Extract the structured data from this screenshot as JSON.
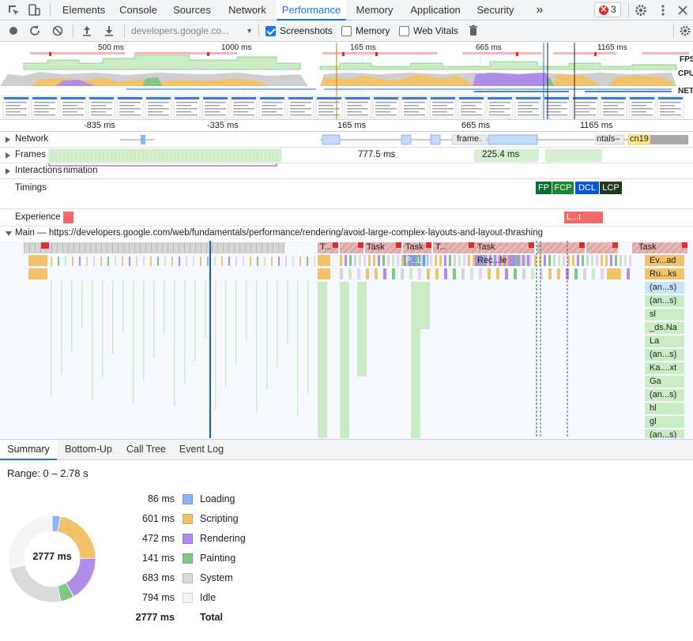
{
  "tabs": {
    "items": [
      {
        "label": "Elements"
      },
      {
        "label": "Console"
      },
      {
        "label": "Sources"
      },
      {
        "label": "Network"
      },
      {
        "label": "Performance"
      },
      {
        "label": "Memory"
      },
      {
        "label": "Application"
      },
      {
        "label": "Security"
      }
    ],
    "active": "Performance",
    "more_label": "»",
    "error_count": "3",
    "error_glyph": "✕"
  },
  "toolbar": {
    "url": "developers.google.co...",
    "screenshots_label": "Screenshots",
    "memory_label": "Memory",
    "webvitals_label": "Web Vitals",
    "screenshots_checked": true,
    "memory_checked": false,
    "webvitals_checked": false
  },
  "overview": {
    "tick_labels": [
      "500 ms",
      "1000 ms",
      "165 ms",
      "665 ms",
      "1165 ms"
    ],
    "fps_label": "FPS",
    "cpu_label": "CPU",
    "net_label": "NET"
  },
  "ruler": {
    "tick_labels": [
      "-835 ms",
      "-335 ms",
      "165 ms",
      "665 ms",
      "1165 ms"
    ]
  },
  "tracks": {
    "network": "Network",
    "frames": "Frames",
    "interactions": "Interactions",
    "interactions_suffix": "nimation",
    "timings": "Timings",
    "experience": "Experience",
    "main": "Main — https://developers.google.com/web/fundamentals/performance/rendering/avoid-large-complex-layouts-and-layout-thrashing"
  },
  "network_items": [
    "frame.",
    "ntals–",
    "cn19"
  ],
  "frames": {
    "duration_1": "777.5 ms",
    "duration_2": "225.4 ms"
  },
  "timings": {
    "fp": "FP",
    "fcp": "FCP",
    "dcl": "DCL",
    "lcp": "LCP"
  },
  "experience_item": "L...t",
  "flame": {
    "task_labels": [
      "T...",
      "Task",
      "Task",
      "T...",
      "Task",
      "Task"
    ],
    "sub_labels": [
      "P...L",
      "Rec...le"
    ],
    "right_stack": [
      "Ev...ad",
      "Ru...ks",
      "(an...s)",
      "(an...s)",
      "sl",
      "_ds.Na",
      "La",
      "(an...s)",
      "Ka....xt",
      "Ga",
      "(an...s)",
      "hl",
      "gl",
      "(an...s)"
    ]
  },
  "bottom_tabs": [
    {
      "label": "Summary"
    },
    {
      "label": "Bottom-Up"
    },
    {
      "label": "Call Tree"
    },
    {
      "label": "Event Log"
    }
  ],
  "summary": {
    "range": "Range: 0 – 2.78 s",
    "center": "2777 ms",
    "rows": [
      {
        "value": "86 ms",
        "label": "Loading",
        "color": "#8ab4f8",
        "ms": 86
      },
      {
        "value": "601 ms",
        "label": "Scripting",
        "color": "#f2c26b",
        "ms": 601
      },
      {
        "value": "472 ms",
        "label": "Rendering",
        "color": "#af8de8",
        "ms": 472
      },
      {
        "value": "141 ms",
        "label": "Painting",
        "color": "#81c784",
        "ms": 141
      },
      {
        "value": "683 ms",
        "label": "System",
        "color": "#dadada",
        "ms": 683
      },
      {
        "value": "794 ms",
        "label": "Idle",
        "color": "#f5f5f5",
        "ms": 794
      }
    ],
    "total_value": "2777 ms",
    "total_label": "Total"
  },
  "colors": {
    "accent": "#1a73e8",
    "fp": "#0a6e31",
    "fcp": "#178731",
    "dcl": "#0b57d0",
    "lcp": "#1e3a20",
    "experience": "#f06969",
    "task": "#d5d5d5",
    "scripting": "#f2c26b",
    "rendering": "#af8de8",
    "painting": "#81c784",
    "loading": "#8ab4f8"
  }
}
